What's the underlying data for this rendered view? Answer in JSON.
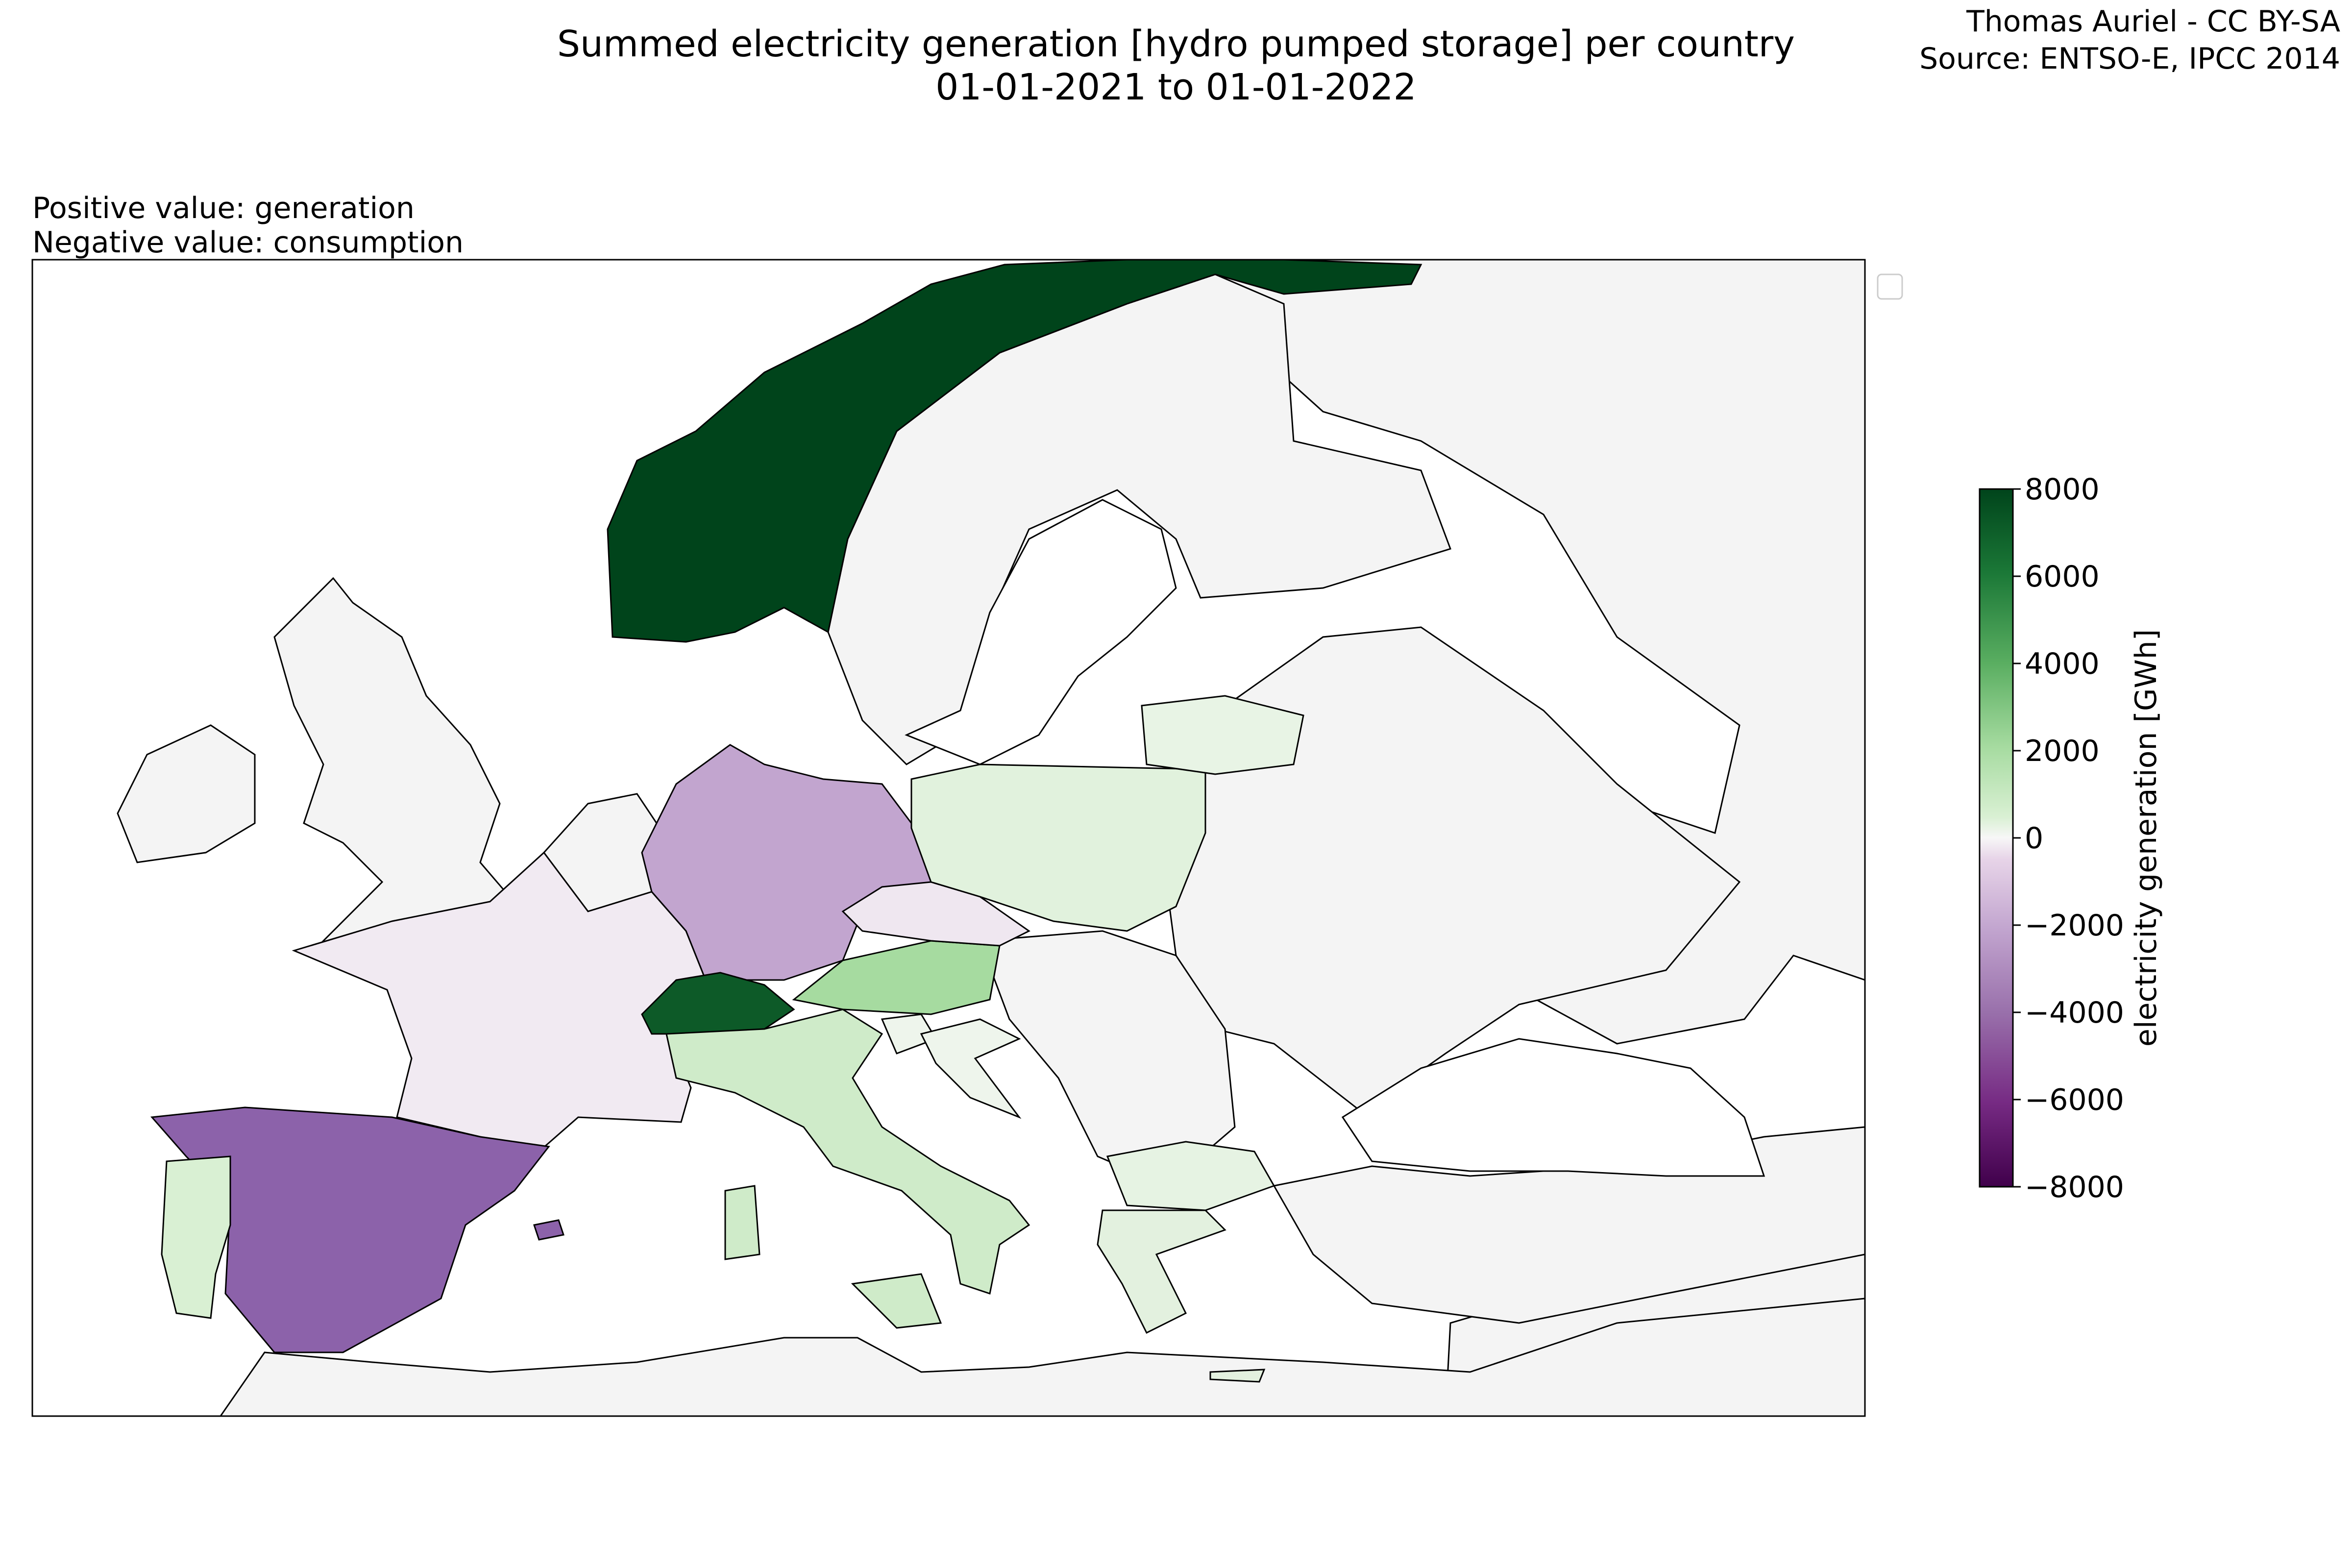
{
  "header": {
    "title_line1": "Summed electricity generation [hydro pumped storage] per country",
    "title_line2": "01-01-2021 to 01-01-2022",
    "credit_line1": "Thomas Auriel - CC BY-SA",
    "credit_line2": "Source: ENTSO-E, IPCC 2014"
  },
  "note": {
    "line1": "Positive value: generation",
    "line2": "Negative value: consumption"
  },
  "colorbar": {
    "label": "electricity generation [GWh]",
    "min": -8000,
    "max": 8000,
    "ticks": [
      8000,
      6000,
      4000,
      2000,
      0,
      -2000,
      -4000,
      -6000,
      -8000
    ],
    "tick_labels": [
      "8000",
      "6000",
      "4000",
      "2000",
      "0",
      "−2000",
      "−4000",
      "−6000",
      "−8000"
    ],
    "colormap": "PRGn"
  },
  "map": {
    "no_data_color": "#f4f4f4",
    "sea_color": "#ffffff"
  },
  "chart_data": {
    "type": "choropleth",
    "units": "GWh",
    "regions": [
      {
        "name": "Norway",
        "value": 8000
      },
      {
        "name": "Switzerland",
        "value": 7000
      },
      {
        "name": "Austria",
        "value": 3000
      },
      {
        "name": "Italy",
        "value": 1800
      },
      {
        "name": "Portugal",
        "value": 1300
      },
      {
        "name": "Poland",
        "value": 1000
      },
      {
        "name": "Bulgaria",
        "value": 600
      },
      {
        "name": "Greece",
        "value": 500
      },
      {
        "name": "Lithuania",
        "value": 500
      },
      {
        "name": "Slovenia",
        "value": 300
      },
      {
        "name": "Croatia",
        "value": 200
      },
      {
        "name": "Czechia",
        "value": -500
      },
      {
        "name": "France",
        "value": -600
      },
      {
        "name": "Germany",
        "value": -3300
      },
      {
        "name": "Spain",
        "value": -4800
      }
    ]
  }
}
